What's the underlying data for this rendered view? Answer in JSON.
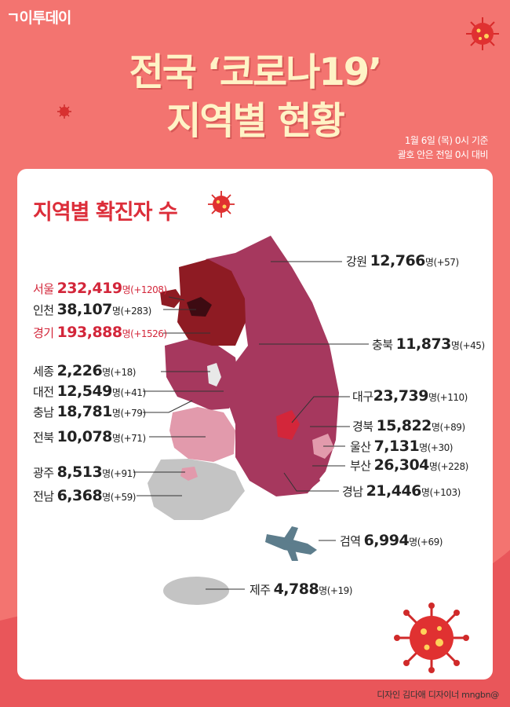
{
  "brand": "이투데이",
  "title": {
    "line1": "전국 ‘코로나19’",
    "line2": "지역별 현황"
  },
  "basis": {
    "line1": "1월 6일 (목) 0시 기준",
    "line2": "괄호 안은 전일 0시 대비"
  },
  "card_title": "지역별 확진자 수",
  "unit": "명",
  "colors": {
    "background": "#f37470",
    "title": "#fff3c6",
    "highlight": "#d3263a",
    "map_dark": "#8e1b23",
    "map_mid": "#a6385e",
    "map_light": "#e29aac",
    "map_gray": "#c4c4c4"
  },
  "regions": {
    "gangwon": {
      "name": "강원",
      "count": "12,766",
      "diff": "(+57)"
    },
    "seoul": {
      "name": "서울",
      "count": "232,419",
      "diff": "(+1208)"
    },
    "incheon": {
      "name": "인천",
      "count": "38,107",
      "diff": "(+283)"
    },
    "gyeonggi": {
      "name": "경기",
      "count": "193,888",
      "diff": "(+1526)"
    },
    "chungbuk": {
      "name": "충북",
      "count": "11,873",
      "diff": "(+45)"
    },
    "sejong": {
      "name": "세종",
      "count": "2,226",
      "diff": "(+18)"
    },
    "daejeon": {
      "name": "대전",
      "count": "12,549",
      "diff": "(+41)"
    },
    "chungnam": {
      "name": "충남",
      "count": "18,781",
      "diff": "(+79)"
    },
    "daegu": {
      "name": "대구",
      "count": "23,739",
      "diff": "(+110)"
    },
    "gyeongbuk": {
      "name": "경북",
      "count": "15,822",
      "diff": "(+89)"
    },
    "jeonbuk": {
      "name": "전북",
      "count": "10,078",
      "diff": "(+71)"
    },
    "ulsan": {
      "name": "울산",
      "count": "7,131",
      "diff": "(+30)"
    },
    "busan": {
      "name": "부산",
      "count": "26,304",
      "diff": "(+228)"
    },
    "gwangju": {
      "name": "광주",
      "count": "8,513",
      "diff": "(+91)"
    },
    "gyeongnam": {
      "name": "경남",
      "count": "21,446",
      "diff": "(+103)"
    },
    "jeonnam": {
      "name": "전남",
      "count": "6,368",
      "diff": "(+59)"
    },
    "quarantine": {
      "name": "검역",
      "count": "6,994",
      "diff": "(+69)"
    },
    "jeju": {
      "name": "제주",
      "count": "4,788",
      "diff": "(+19)"
    }
  },
  "credit": "디자인 김다애 디자이너 mngbn@"
}
